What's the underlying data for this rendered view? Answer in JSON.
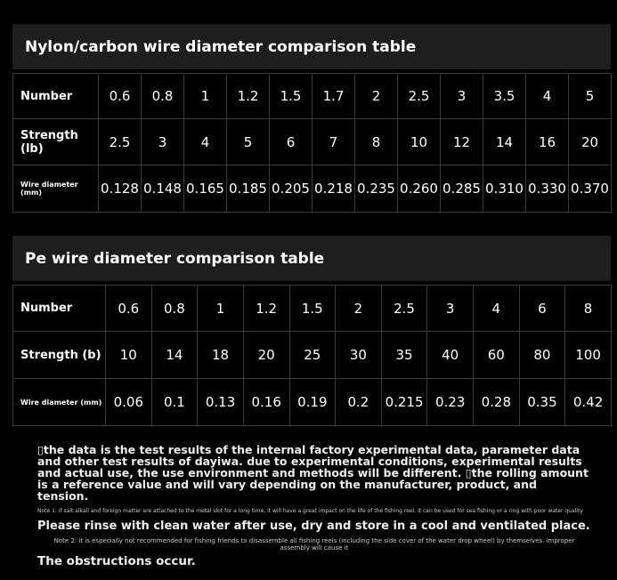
{
  "tables": [
    {
      "title": "Nylon/carbon wire diameter comparison table",
      "rows": [
        [
          "Number",
          "0.6",
          "0.8",
          "1",
          "1.2",
          "1.5",
          "1.7",
          "2",
          "2.5",
          "3",
          "3.5",
          "4",
          "5"
        ],
        [
          "Strength (lb)",
          "2.5",
          "3",
          "4",
          "5",
          "6",
          "7",
          "8",
          "10",
          "12",
          "14",
          "16",
          "20"
        ],
        [
          "Wire diameter (mm)",
          "0.128",
          "0.148",
          "0.165",
          "0.185",
          "0.205",
          "0.218",
          "0.235",
          "0.260",
          "0.285",
          "0.310",
          "0.330",
          "0.370"
        ]
      ]
    },
    {
      "title": "Pe wire diameter comparison table",
      "rows": [
        [
          "Number",
          "0.6",
          "0.8",
          "1",
          "1.2",
          "1.5",
          "2",
          "2.5",
          "3",
          "4",
          "6",
          "8"
        ],
        [
          "Strength (b)",
          "10",
          "14",
          "18",
          "20",
          "25",
          "30",
          "35",
          "40",
          "60",
          "80",
          "100"
        ],
        [
          "Wire diameter (mm)",
          "0.06",
          "0.1",
          "0.13",
          "0.16",
          "0.19",
          "0.2",
          "0.215",
          "0.23",
          "0.28",
          "0.35",
          "0.42"
        ]
      ]
    }
  ],
  "notes": {
    "paragraph": "▯the data is the test results of the internal factory experimental data, parameter data and other test results of dayiwa. due to experimental conditions, experimental results and actual use, the use environment and methods will be different. ▯the rolling amount is a reference value and will vary depending on the manufacturer, product, and tension.",
    "note1": "Note 1: if salt alkali and foreign matter are attached to the metal slot for a long time, it will have a great impact on the life of the fishing reel. it can be used for sea fishing or a ring with poor water quality",
    "rinse": "Please rinse with clean water after use, dry and store in a cool and ventilated place.",
    "note2": "Note 2: it is especially not recommended for fishing friends to disassemble all fishing reels (including the side cover of the water drop wheel) by themselves. improper assembly will cause it",
    "obstructions": "The obstructions occur."
  }
}
